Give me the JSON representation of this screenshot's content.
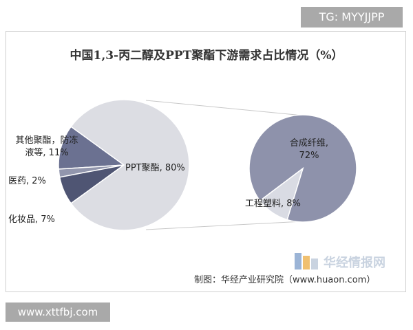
{
  "badge": "TG: MYYJJPP",
  "chart_data": {
    "type": "pie-of-pie",
    "title": "中国1,3-丙二醇及PPT聚酯下游需求占比情况（%）",
    "main": {
      "values": [
        11,
        2,
        7,
        80
      ],
      "value_labels": [
        "其他聚酯，防冻液等, 11%",
        "医药, 2%",
        "化妆品, 7%",
        "PPT聚酯, 80%"
      ],
      "colors": [
        "#6b7191",
        "#9296ad",
        "#4f5573",
        "#dcdde3"
      ]
    },
    "sub": {
      "values": [
        72,
        8
      ],
      "value_labels": [
        "合成纤维, 72%",
        "工程塑料, 8%"
      ],
      "colors": [
        "#8e92ab",
        "#d9dbe3"
      ]
    },
    "source": "制图：华经产业研究院（www.huaon.com）"
  },
  "watermark": "华经情报网",
  "footer": "www.xttfbj.com"
}
